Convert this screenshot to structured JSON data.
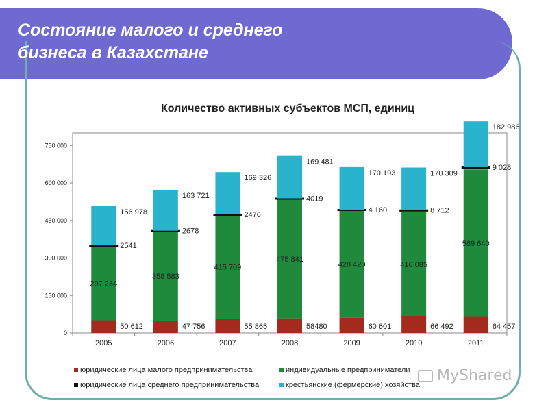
{
  "page": {
    "title_line1": "Состояние малого и среднего",
    "title_line2": "бизнеса в Казахстане",
    "watermark": "MyShared"
  },
  "colors": {
    "banner": "#6e6ad1",
    "legal_small": "#a32b1e",
    "individual": "#1f8a3c",
    "legal_medium": "#111111",
    "farm": "#2ab3cc"
  },
  "chart_data": {
    "type": "bar",
    "stacked": true,
    "title": "Количество активных субъектов МСП, единиц",
    "categories": [
      "2005",
      "2006",
      "2007",
      "2008",
      "2009",
      "2010",
      "2011"
    ],
    "ylim": [
      0,
      800000
    ],
    "yticks": [
      0,
      150000,
      300000,
      450000,
      600000,
      750000
    ],
    "ytick_labels": [
      "0",
      "150 000",
      "300 000",
      "450 000",
      "600 000",
      "750 000"
    ],
    "series": [
      {
        "key": "legal_small",
        "name": "юридические лица малого предпринимательства",
        "values": [
          50612,
          47756,
          55865,
          58480,
          60601,
          66492,
          64457
        ],
        "labels": [
          "50 612",
          "47 756",
          "55 865",
          "58480",
          "60 601",
          "66 492",
          "64 457"
        ]
      },
      {
        "key": "individual",
        "name": "индивидуальные предприниматели",
        "values": [
          297234,
          358583,
          415709,
          475841,
          428420,
          416085,
          589640
        ],
        "labels": [
          "297 234",
          "358 583",
          "415 709",
          "475 841",
          "428 420",
          "416 085",
          "589 640"
        ]
      },
      {
        "key": "legal_medium",
        "name": "юридические лица среднего предпринимательства",
        "values": [
          2541,
          2678,
          2476,
          4019,
          4160,
          8712,
          9028
        ],
        "labels": [
          "2541",
          "2678",
          "2476",
          "4019",
          "4 160",
          "8 712",
          "9 028"
        ]
      },
      {
        "key": "farm",
        "name": "крестьянские (фермерские) хозяйства",
        "values": [
          156978,
          163721,
          169326,
          169481,
          170193,
          170309,
          182986
        ],
        "labels": [
          "156 978",
          "163 721",
          "169 326",
          "169 481",
          "170 193",
          "170 309",
          "182 986"
        ]
      }
    ],
    "legend": [
      "юридические лица малого предпринимательства",
      "индивидуальные предприниматели",
      "юридические лица среднего предпринимательства",
      "крестьянские (фермерские) хозяйства"
    ],
    "legend_position": "bottom"
  }
}
